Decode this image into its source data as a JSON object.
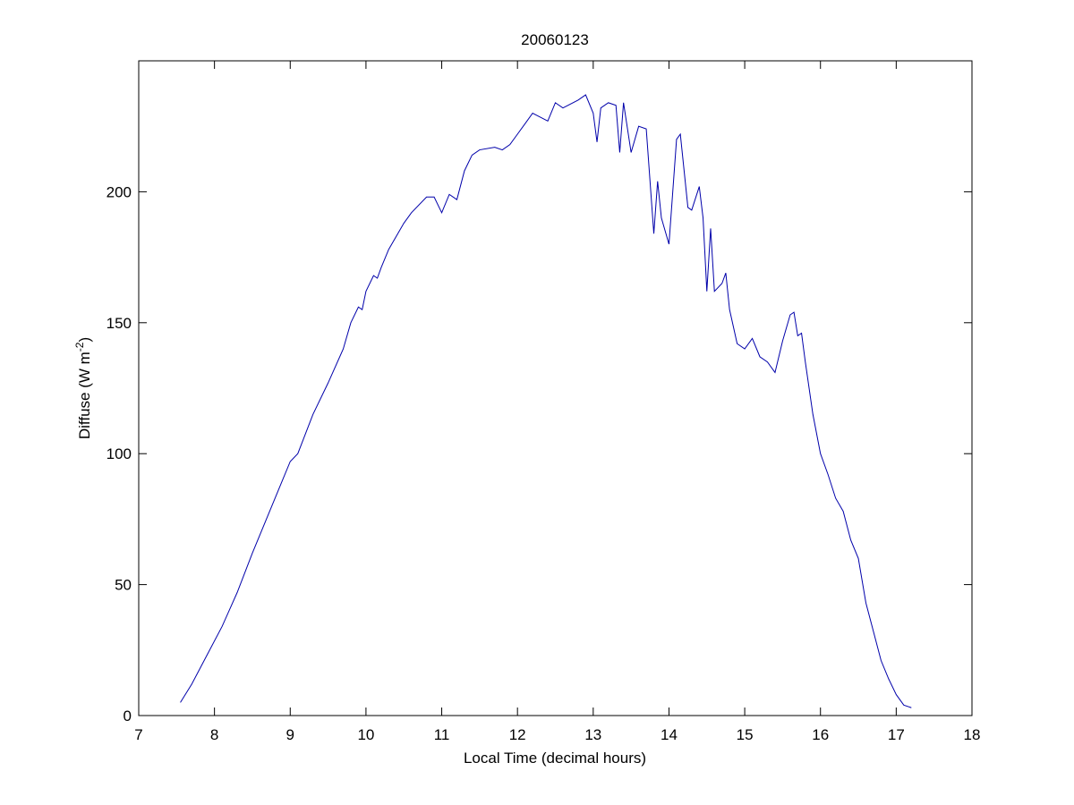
{
  "chart_data": {
    "type": "line",
    "title": "20060123",
    "xlabel": "Local Time (decimal hours)",
    "ylabel": {
      "text": "Diffuse (W m",
      "superscript": "-2",
      "suffix": ")"
    },
    "xlim": [
      7,
      18
    ],
    "xticks": [
      7,
      8,
      9,
      10,
      11,
      12,
      13,
      14,
      15,
      16,
      17,
      18
    ],
    "ylim": [
      0,
      250
    ],
    "yticks": [
      0,
      50,
      100,
      150,
      200
    ],
    "grid": false,
    "series": [
      {
        "color": "#0000aa",
        "x": [
          7.55,
          7.7,
          7.9,
          8.1,
          8.3,
          8.5,
          8.7,
          8.9,
          9.0,
          9.1,
          9.3,
          9.5,
          9.7,
          9.8,
          9.9,
          9.95,
          10.0,
          10.1,
          10.15,
          10.2,
          10.3,
          10.5,
          10.6,
          10.8,
          10.9,
          11.0,
          11.1,
          11.2,
          11.3,
          11.4,
          11.5,
          11.7,
          11.8,
          11.9,
          12.0,
          12.1,
          12.2,
          12.4,
          12.5,
          12.6,
          12.8,
          12.9,
          13.0,
          13.05,
          13.1,
          13.2,
          13.3,
          13.35,
          13.4,
          13.5,
          13.6,
          13.7,
          13.8,
          13.85,
          13.9,
          14.0,
          14.05,
          14.1,
          14.15,
          14.25,
          14.3,
          14.4,
          14.45,
          14.5,
          14.55,
          14.6,
          14.7,
          14.75,
          14.8,
          14.9,
          15.0,
          15.1,
          15.2,
          15.3,
          15.4,
          15.5,
          15.6,
          15.65,
          15.7,
          15.75,
          15.8,
          15.9,
          16.0,
          16.1,
          16.2,
          16.3,
          16.4,
          16.5,
          16.6,
          16.7,
          16.8,
          16.9,
          17.0,
          17.1,
          17.2
        ],
        "values": [
          5,
          12,
          23,
          34,
          47,
          62,
          76,
          90,
          97,
          100,
          115,
          127,
          140,
          150,
          156,
          155,
          162,
          168,
          167,
          171,
          178,
          188,
          192,
          198,
          198,
          192,
          199,
          197,
          208,
          214,
          216,
          217,
          216,
          218,
          222,
          226,
          230,
          227,
          234,
          232,
          235,
          237,
          230,
          219,
          232,
          234,
          233,
          215,
          234,
          215,
          225,
          224,
          184,
          204,
          190,
          180,
          200,
          220,
          222,
          194,
          193,
          202,
          190,
          162,
          186,
          162,
          165,
          169,
          155,
          142,
          140,
          144,
          137,
          135,
          131,
          143,
          153,
          154,
          145,
          146,
          135,
          115,
          100,
          92,
          83,
          78,
          67,
          60,
          43,
          32,
          21,
          14,
          8,
          4,
          3
        ]
      }
    ]
  }
}
